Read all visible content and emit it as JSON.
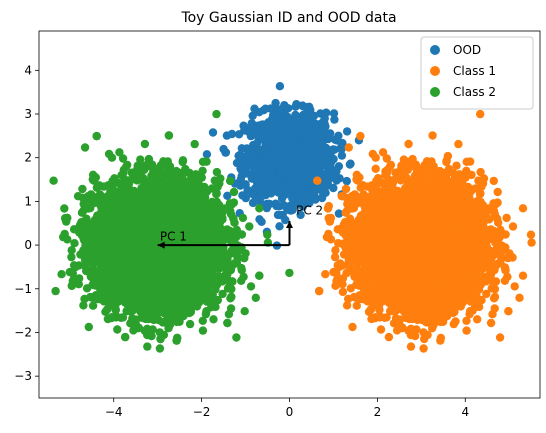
{
  "chart_data": {
    "type": "scatter",
    "title": "Toy Gaussian ID and OOD data",
    "xlabel": "",
    "ylabel": "",
    "xlim": [
      -5.7,
      5.7
    ],
    "ylim": [
      -3.5,
      4.9
    ],
    "xticks": [
      -4,
      -2,
      0,
      2,
      4
    ],
    "yticks": [
      -3,
      -2,
      -1,
      0,
      1,
      2,
      3,
      4
    ],
    "grid": false,
    "legend_position": "top-right",
    "series": [
      {
        "name": "OOD",
        "color": "#1f77b4",
        "center": [
          0,
          2
        ],
        "std": 0.5,
        "count": 1200
      },
      {
        "name": "Class 1",
        "color": "#ff7f0e",
        "center": [
          3,
          0
        ],
        "std": 0.7,
        "count": 6000
      },
      {
        "name": "Class 2",
        "color": "#2ca02c",
        "center": [
          -3,
          0
        ],
        "std": 0.7,
        "count": 6000
      }
    ],
    "annotations": [
      {
        "label": "PC 1",
        "arrow_from": [
          0,
          0
        ],
        "arrow_to": [
          -3,
          0
        ],
        "text_at": [
          -2.95,
          0.1
        ]
      },
      {
        "label": "PC 2",
        "arrow_from": [
          0,
          0
        ],
        "arrow_to": [
          0,
          0.55
        ],
        "text_at": [
          0.15,
          0.7
        ]
      }
    ]
  }
}
